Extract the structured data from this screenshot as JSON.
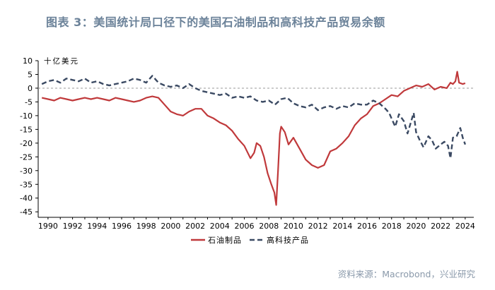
{
  "title": "图表 3：美国统计局口径下的美国石油制品和高科技产品贸易余额",
  "source": "资料来源：Macrobond，兴业研究",
  "colors": {
    "title": "#6b8299",
    "petroleum": "#c0393b",
    "hightech": "#3b4a63",
    "zero_line": "#9a9a9a"
  },
  "chart_data": {
    "type": "line",
    "ylabel": "十亿美元",
    "ylim": [
      -47,
      10
    ],
    "yticks": [
      10,
      5,
      0,
      -5,
      -10,
      -15,
      -20,
      -25,
      -30,
      -35,
      -40,
      -45
    ],
    "xlim": [
      1989.2,
      2024.7
    ],
    "xticks": [
      1990,
      1992,
      1994,
      1996,
      1998,
      2000,
      2002,
      2004,
      2006,
      2008,
      2010,
      2012,
      2014,
      2016,
      2018,
      2020,
      2022,
      2024
    ],
    "zero_line": "dashed",
    "legend": "bottom-center",
    "series": [
      {
        "name": "石油制品",
        "style": "solid",
        "points": [
          [
            1989.5,
            -3.5
          ],
          [
            1990.0,
            -4.0
          ],
          [
            1990.5,
            -4.5
          ],
          [
            1991.0,
            -3.5
          ],
          [
            1991.5,
            -4.0
          ],
          [
            1992.0,
            -4.5
          ],
          [
            1992.5,
            -4.0
          ],
          [
            1993.0,
            -3.5
          ],
          [
            1993.5,
            -4.0
          ],
          [
            1994.0,
            -3.5
          ],
          [
            1994.5,
            -4.0
          ],
          [
            1995.0,
            -4.5
          ],
          [
            1995.5,
            -3.5
          ],
          [
            1996.0,
            -4.0
          ],
          [
            1996.5,
            -4.5
          ],
          [
            1997.0,
            -5.0
          ],
          [
            1997.5,
            -4.5
          ],
          [
            1998.0,
            -3.5
          ],
          [
            1998.5,
            -3.0
          ],
          [
            1999.0,
            -3.5
          ],
          [
            1999.5,
            -6.0
          ],
          [
            2000.0,
            -8.5
          ],
          [
            2000.5,
            -9.5
          ],
          [
            2001.0,
            -10.0
          ],
          [
            2001.5,
            -8.5
          ],
          [
            2002.0,
            -7.5
          ],
          [
            2002.5,
            -7.5
          ],
          [
            2003.0,
            -10.0
          ],
          [
            2003.5,
            -11.0
          ],
          [
            2004.0,
            -12.5
          ],
          [
            2004.5,
            -13.5
          ],
          [
            2005.0,
            -15.5
          ],
          [
            2005.5,
            -18.5
          ],
          [
            2006.0,
            -21.0
          ],
          [
            2006.5,
            -25.5
          ],
          [
            2006.8,
            -23.5
          ],
          [
            2007.0,
            -20.0
          ],
          [
            2007.3,
            -21.0
          ],
          [
            2007.6,
            -25.0
          ],
          [
            2007.9,
            -31.0
          ],
          [
            2008.2,
            -35.0
          ],
          [
            2008.45,
            -38.0
          ],
          [
            2008.6,
            -42.5
          ],
          [
            2008.75,
            -30.0
          ],
          [
            2008.9,
            -16.5
          ],
          [
            2009.0,
            -14.0
          ],
          [
            2009.3,
            -16.0
          ],
          [
            2009.6,
            -20.5
          ],
          [
            2010.0,
            -18.0
          ],
          [
            2010.5,
            -22.0
          ],
          [
            2011.0,
            -26.0
          ],
          [
            2011.5,
            -28.0
          ],
          [
            2012.0,
            -29.0
          ],
          [
            2012.5,
            -28.0
          ],
          [
            2013.0,
            -23.0
          ],
          [
            2013.5,
            -22.0
          ],
          [
            2014.0,
            -20.0
          ],
          [
            2014.5,
            -17.5
          ],
          [
            2015.0,
            -13.5
          ],
          [
            2015.5,
            -11.0
          ],
          [
            2016.0,
            -9.5
          ],
          [
            2016.5,
            -6.5
          ],
          [
            2017.0,
            -5.5
          ],
          [
            2017.5,
            -4.0
          ],
          [
            2018.0,
            -2.5
          ],
          [
            2018.5,
            -3.0
          ],
          [
            2019.0,
            -1.0
          ],
          [
            2019.5,
            0.0
          ],
          [
            2020.0,
            1.0
          ],
          [
            2020.5,
            0.5
          ],
          [
            2021.0,
            1.5
          ],
          [
            2021.5,
            -0.5
          ],
          [
            2022.0,
            0.5
          ],
          [
            2022.5,
            0.0
          ],
          [
            2022.8,
            2.0
          ],
          [
            2023.0,
            1.5
          ],
          [
            2023.2,
            2.5
          ],
          [
            2023.35,
            6.0
          ],
          [
            2023.5,
            2.0
          ],
          [
            2023.8,
            1.5
          ],
          [
            2024.0,
            1.8
          ]
        ]
      },
      {
        "name": "高科技产品",
        "style": "dashed",
        "points": [
          [
            1989.5,
            1.5
          ],
          [
            1990.0,
            2.5
          ],
          [
            1990.5,
            3.0
          ],
          [
            1991.0,
            2.0
          ],
          [
            1991.5,
            3.5
          ],
          [
            1992.0,
            3.0
          ],
          [
            1992.5,
            2.5
          ],
          [
            1993.0,
            3.5
          ],
          [
            1993.5,
            2.0
          ],
          [
            1994.0,
            2.5
          ],
          [
            1994.5,
            1.5
          ],
          [
            1995.0,
            1.0
          ],
          [
            1995.5,
            1.5
          ],
          [
            1996.0,
            2.0
          ],
          [
            1996.5,
            2.5
          ],
          [
            1997.0,
            3.5
          ],
          [
            1997.5,
            3.0
          ],
          [
            1998.0,
            2.0
          ],
          [
            1998.5,
            4.5
          ],
          [
            1998.8,
            3.0
          ],
          [
            1999.0,
            2.0
          ],
          [
            1999.5,
            1.0
          ],
          [
            2000.0,
            0.5
          ],
          [
            2000.5,
            1.0
          ],
          [
            2001.0,
            0.0
          ],
          [
            2001.5,
            1.5
          ],
          [
            2002.0,
            0.0
          ],
          [
            2002.5,
            -1.0
          ],
          [
            2003.0,
            -1.5
          ],
          [
            2003.5,
            -2.0
          ],
          [
            2004.0,
            -2.5
          ],
          [
            2004.5,
            -2.0
          ],
          [
            2005.0,
            -3.5
          ],
          [
            2005.5,
            -3.0
          ],
          [
            2006.0,
            -3.5
          ],
          [
            2006.5,
            -3.0
          ],
          [
            2007.0,
            -4.5
          ],
          [
            2007.5,
            -5.0
          ],
          [
            2008.0,
            -4.5
          ],
          [
            2008.5,
            -6.0
          ],
          [
            2009.0,
            -4.0
          ],
          [
            2009.5,
            -3.5
          ],
          [
            2010.0,
            -5.5
          ],
          [
            2010.5,
            -6.5
          ],
          [
            2011.0,
            -7.0
          ],
          [
            2011.5,
            -6.0
          ],
          [
            2012.0,
            -8.0
          ],
          [
            2012.5,
            -7.0
          ],
          [
            2013.0,
            -6.5
          ],
          [
            2013.5,
            -7.5
          ],
          [
            2014.0,
            -6.5
          ],
          [
            2014.5,
            -7.0
          ],
          [
            2015.0,
            -5.5
          ],
          [
            2015.5,
            -6.0
          ],
          [
            2016.0,
            -6.0
          ],
          [
            2016.5,
            -4.5
          ],
          [
            2017.0,
            -5.5
          ],
          [
            2017.5,
            -7.5
          ],
          [
            2017.8,
            -9.0
          ],
          [
            2018.0,
            -11.0
          ],
          [
            2018.3,
            -14.0
          ],
          [
            2018.6,
            -9.5
          ],
          [
            2019.0,
            -12.0
          ],
          [
            2019.3,
            -16.5
          ],
          [
            2019.6,
            -12.0
          ],
          [
            2019.8,
            -9.0
          ],
          [
            2020.0,
            -16.0
          ],
          [
            2020.3,
            -19.0
          ],
          [
            2020.6,
            -21.5
          ],
          [
            2021.0,
            -17.5
          ],
          [
            2021.3,
            -19.0
          ],
          [
            2021.6,
            -22.0
          ],
          [
            2022.0,
            -20.5
          ],
          [
            2022.3,
            -19.5
          ],
          [
            2022.6,
            -21.0
          ],
          [
            2022.8,
            -25.5
          ],
          [
            2023.0,
            -18.0
          ],
          [
            2023.3,
            -17.5
          ],
          [
            2023.6,
            -14.5
          ],
          [
            2023.8,
            -18.0
          ],
          [
            2024.0,
            -20.5
          ]
        ]
      }
    ]
  }
}
